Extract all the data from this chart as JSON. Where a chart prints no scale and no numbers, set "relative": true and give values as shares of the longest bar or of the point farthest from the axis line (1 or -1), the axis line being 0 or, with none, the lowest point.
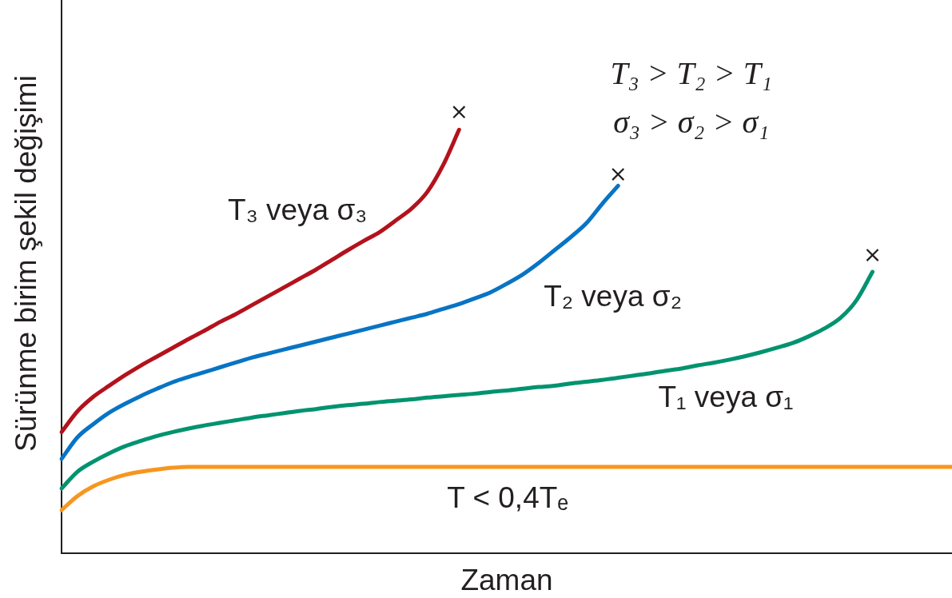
{
  "chart_data": {
    "type": "line",
    "xlabel": "Zaman",
    "ylabel": "Sürünme birim şekil değişimi",
    "relative": true,
    "grid": false,
    "legend": false,
    "marker": "none",
    "categories": [
      null,
      null,
      null,
      null,
      null,
      null,
      null,
      null,
      null,
      null,
      null,
      null,
      null,
      null,
      null,
      null,
      null,
      null,
      null,
      null,
      null,
      null,
      null,
      null,
      null,
      null,
      null,
      null,
      null,
      null,
      null,
      null,
      null,
      null,
      null,
      null,
      null,
      null,
      null,
      null,
      null,
      null,
      null,
      null,
      null,
      null,
      null,
      null,
      null,
      null,
      null,
      null,
      null,
      null,
      null,
      null,
      null
    ],
    "series": [
      {
        "name": "T₃ veya σ₃",
        "color": "#b3121c",
        "values": [
          0.275,
          0.322,
          0.355,
          0.38,
          0.404,
          0.426,
          0.446,
          0.466,
          0.486,
          0.505,
          0.525,
          0.543,
          0.563,
          0.583,
          0.603,
          0.623,
          0.643,
          0.665,
          0.687,
          0.708,
          0.728,
          0.754,
          0.781,
          0.819,
          0.88,
          0.96,
          null,
          null,
          null,
          null,
          null,
          null,
          null,
          null,
          null,
          null,
          null,
          null,
          null,
          null,
          null,
          null,
          null,
          null,
          null,
          null,
          null,
          null,
          null,
          null,
          null,
          null,
          null,
          null,
          null,
          null,
          null
        ]
      },
      {
        "name": "T₂ veya σ₂",
        "color": "#0874c4",
        "values": [
          0.214,
          0.263,
          0.293,
          0.319,
          0.339,
          0.357,
          0.373,
          0.388,
          0.4,
          0.411,
          0.422,
          0.433,
          0.444,
          0.453,
          0.462,
          0.471,
          0.48,
          0.489,
          0.498,
          0.507,
          0.516,
          0.525,
          0.534,
          0.543,
          0.554,
          0.565,
          0.578,
          0.592,
          0.611,
          0.632,
          0.658,
          0.687,
          0.716,
          0.748,
          0.792,
          0.833,
          null,
          null,
          null,
          null,
          null,
          null,
          null,
          null,
          null,
          null,
          null,
          null,
          null,
          null,
          null,
          null,
          null,
          null,
          null,
          null,
          null
        ]
      },
      {
        "name": "T₁ veya σ₁",
        "color": "#00936f",
        "values": [
          0.147,
          0.185,
          0.208,
          0.227,
          0.243,
          0.255,
          0.266,
          0.275,
          0.283,
          0.29,
          0.296,
          0.302,
          0.308,
          0.313,
          0.318,
          0.323,
          0.327,
          0.332,
          0.336,
          0.339,
          0.343,
          0.346,
          0.349,
          0.353,
          0.356,
          0.359,
          0.362,
          0.366,
          0.369,
          0.373,
          0.377,
          0.38,
          0.385,
          0.389,
          0.393,
          0.398,
          0.403,
          0.408,
          0.414,
          0.419,
          0.426,
          0.432,
          0.439,
          0.447,
          0.456,
          0.466,
          0.477,
          0.492,
          0.51,
          0.534,
          0.574,
          0.638,
          null,
          null,
          null,
          null,
          null
        ]
      },
      {
        "name": "T < 0,4Tₑ",
        "color": "#f7961e",
        "values": [
          0.098,
          0.13,
          0.152,
          0.167,
          0.178,
          0.185,
          0.19,
          0.194,
          0.196,
          0.196,
          0.196,
          0.196,
          0.196,
          0.196,
          0.196,
          0.196,
          0.196,
          0.196,
          0.196,
          0.196,
          0.196,
          0.196,
          0.196,
          0.196,
          0.196,
          0.196,
          0.196,
          0.196,
          0.196,
          0.196,
          0.196,
          0.196,
          0.196,
          0.196,
          0.196,
          0.196,
          0.196,
          0.196,
          0.196,
          0.196,
          0.196,
          0.196,
          0.196,
          0.196,
          0.196,
          0.196,
          0.196,
          0.196,
          0.196,
          0.196,
          0.196,
          0.196,
          0.196,
          0.196,
          0.196,
          0.196,
          0.196
        ]
      },
      {
        "type": "line",
        "marker": "cross",
        "color": "#231f20",
        "values": [
          null,
          null,
          null,
          null,
          null,
          null,
          null,
          null,
          null,
          null,
          null,
          null,
          null,
          null,
          null,
          null,
          null,
          null,
          null,
          null,
          null,
          null,
          null,
          null,
          null,
          1.0,
          null,
          null,
          null,
          null,
          null,
          null,
          null,
          null,
          null,
          0.859,
          null,
          null,
          null,
          null,
          null,
          null,
          null,
          null,
          null,
          null,
          null,
          null,
          null,
          null,
          null,
          0.676,
          null,
          null,
          null,
          null,
          null
        ]
      }
    ],
    "annotations": [
      "T₃ > T₂ > T₁",
      "σ₃ > σ₂ > σ₁"
    ]
  }
}
